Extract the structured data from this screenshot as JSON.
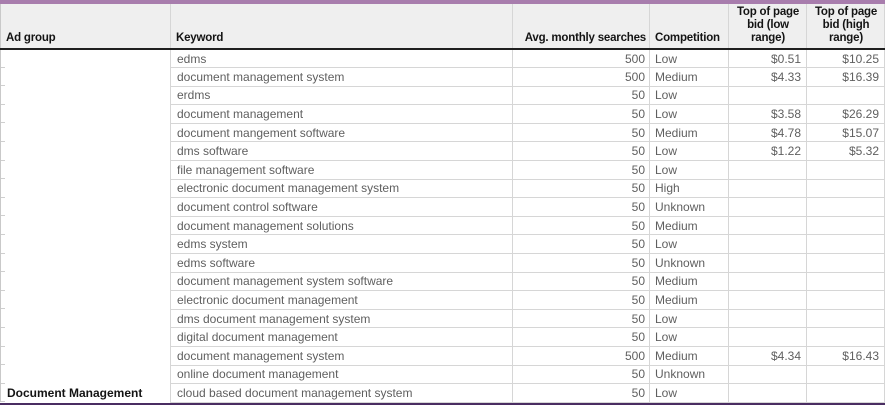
{
  "accents": {
    "top_bar_color": "#a87dad",
    "bottom_border_color": "#4a2d62"
  },
  "table": {
    "columns": [
      {
        "key": "ad_group",
        "label": "Ad group"
      },
      {
        "key": "keyword",
        "label": "Keyword"
      },
      {
        "key": "avg_monthly_searches",
        "label": "Avg. monthly searches"
      },
      {
        "key": "competition",
        "label": "Competition"
      },
      {
        "key": "top_of_page_bid_low",
        "label": "Top of page\nbid (low\nrange)"
      },
      {
        "key": "top_of_page_bid_high",
        "label": "Top of page\nbid (high\nrange)"
      }
    ],
    "rows": [
      {
        "ad_group": "",
        "keyword": "edms",
        "avg_monthly_searches": "500",
        "competition": "Low",
        "top_of_page_bid_low": "$0.51",
        "top_of_page_bid_high": "$10.25"
      },
      {
        "ad_group": "",
        "keyword": "document management system",
        "avg_monthly_searches": "500",
        "competition": "Medium",
        "top_of_page_bid_low": "$4.33",
        "top_of_page_bid_high": "$16.39"
      },
      {
        "ad_group": "",
        "keyword": "erdms",
        "avg_monthly_searches": "50",
        "competition": "Low",
        "top_of_page_bid_low": "",
        "top_of_page_bid_high": ""
      },
      {
        "ad_group": "",
        "keyword": "document management",
        "avg_monthly_searches": "50",
        "competition": "Low",
        "top_of_page_bid_low": "$3.58",
        "top_of_page_bid_high": "$26.29"
      },
      {
        "ad_group": "",
        "keyword": "document mangement software",
        "avg_monthly_searches": "50",
        "competition": "Medium",
        "top_of_page_bid_low": "$4.78",
        "top_of_page_bid_high": "$15.07"
      },
      {
        "ad_group": "",
        "keyword": "dms software",
        "avg_monthly_searches": "50",
        "competition": "Low",
        "top_of_page_bid_low": "$1.22",
        "top_of_page_bid_high": "$5.32"
      },
      {
        "ad_group": "",
        "keyword": "file management software",
        "avg_monthly_searches": "50",
        "competition": "Low",
        "top_of_page_bid_low": "",
        "top_of_page_bid_high": ""
      },
      {
        "ad_group": "",
        "keyword": "electronic document management system",
        "avg_monthly_searches": "50",
        "competition": "High",
        "top_of_page_bid_low": "",
        "top_of_page_bid_high": ""
      },
      {
        "ad_group": "",
        "keyword": "document control software",
        "avg_monthly_searches": "50",
        "competition": "Unknown",
        "top_of_page_bid_low": "",
        "top_of_page_bid_high": ""
      },
      {
        "ad_group": "",
        "keyword": "document management solutions",
        "avg_monthly_searches": "50",
        "competition": "Medium",
        "top_of_page_bid_low": "",
        "top_of_page_bid_high": ""
      },
      {
        "ad_group": "",
        "keyword": "edms system",
        "avg_monthly_searches": "50",
        "competition": "Low",
        "top_of_page_bid_low": "",
        "top_of_page_bid_high": ""
      },
      {
        "ad_group": "",
        "keyword": "edms software",
        "avg_monthly_searches": "50",
        "competition": "Unknown",
        "top_of_page_bid_low": "",
        "top_of_page_bid_high": ""
      },
      {
        "ad_group": "",
        "keyword": "document management system software",
        "avg_monthly_searches": "50",
        "competition": "Medium",
        "top_of_page_bid_low": "",
        "top_of_page_bid_high": ""
      },
      {
        "ad_group": "",
        "keyword": "electronic document management",
        "avg_monthly_searches": "50",
        "competition": "Medium",
        "top_of_page_bid_low": "",
        "top_of_page_bid_high": ""
      },
      {
        "ad_group": "",
        "keyword": "dms document management system",
        "avg_monthly_searches": "50",
        "competition": "Low",
        "top_of_page_bid_low": "",
        "top_of_page_bid_high": ""
      },
      {
        "ad_group": "",
        "keyword": "digital document management",
        "avg_monthly_searches": "50",
        "competition": "Low",
        "top_of_page_bid_low": "",
        "top_of_page_bid_high": ""
      },
      {
        "ad_group": "",
        "keyword": "document management system",
        "avg_monthly_searches": "500",
        "competition": "Medium",
        "top_of_page_bid_low": "$4.34",
        "top_of_page_bid_high": "$16.43"
      },
      {
        "ad_group": "",
        "keyword": "online document management",
        "avg_monthly_searches": "50",
        "competition": "Unknown",
        "top_of_page_bid_low": "",
        "top_of_page_bid_high": ""
      },
      {
        "ad_group": "Document Management",
        "keyword": "cloud based document management system",
        "avg_monthly_searches": "50",
        "competition": "Low",
        "top_of_page_bid_low": "",
        "top_of_page_bid_high": ""
      }
    ]
  }
}
